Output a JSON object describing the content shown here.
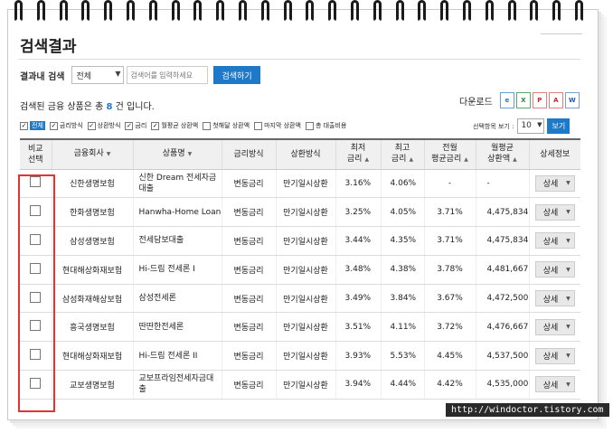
{
  "page": {
    "title": "검색결과"
  },
  "search": {
    "label": "결과내 검색",
    "scope": "전체",
    "placeholder": "검색어를 입력하세요",
    "button": "검색하기"
  },
  "result": {
    "prefix": "검색된 금융 상품은 총 ",
    "count": "8",
    "suffix": " 건 입니다."
  },
  "download": {
    "label": "다운로드",
    "icons": [
      "explorer-icon",
      "excel-icon",
      "pdf-icon",
      "acrobat-icon",
      "word-icon"
    ]
  },
  "filters": [
    {
      "label": "전체",
      "checked": true,
      "active": true
    },
    {
      "label": "금리방식",
      "checked": true
    },
    {
      "label": "상환방식",
      "checked": true
    },
    {
      "label": "금리",
      "checked": true
    },
    {
      "label": "월평균 상환액",
      "checked": true
    },
    {
      "label": "첫해달 상환액",
      "checked": false
    },
    {
      "label": "마지막 상환액",
      "checked": false
    },
    {
      "label": "총 대출비용",
      "checked": false
    }
  ],
  "page_size": {
    "label": "선택항목 보기 :",
    "value": "10",
    "button": "보기"
  },
  "table": {
    "headers": [
      "비교\n선택",
      "금융회사",
      "상품명",
      "금리방식",
      "상환방식",
      "최저\n금리",
      "최고\n금리",
      "전월\n평균금리",
      "월평균\n상환액",
      "상세정보"
    ],
    "detail_label": "상세",
    "rows": [
      [
        "신한생명보험",
        "신한 Dream 전세자금대출",
        "변동금리",
        "만기일시상환",
        "3.16%",
        "4.06%",
        "-",
        "-"
      ],
      [
        "한화생명보험",
        "Hanwha-Home Loan",
        "변동금리",
        "만기일시상환",
        "3.25%",
        "4.05%",
        "3.71%",
        "4,475,834"
      ],
      [
        "삼성생명보험",
        "전세담보대출",
        "변동금리",
        "만기일시상환",
        "3.44%",
        "4.35%",
        "3.71%",
        "4,475,834"
      ],
      [
        "현대해상화재보험",
        "Hi-드림 전세론 I",
        "변동금리",
        "만기일시상환",
        "3.48%",
        "4.38%",
        "3.78%",
        "4,481,667"
      ],
      [
        "삼성화재해상보험",
        "삼성전세론",
        "변동금리",
        "만기일시상환",
        "3.49%",
        "3.84%",
        "3.67%",
        "4,472,500"
      ],
      [
        "흥국생명보험",
        "딴딴한전세론",
        "변동금리",
        "만기일시상환",
        "3.51%",
        "4.11%",
        "3.72%",
        "4,476,667"
      ],
      [
        "현대해상화재보험",
        "Hi-드림 전세론 II",
        "변동금리",
        "만기일시상환",
        "3.93%",
        "5.53%",
        "4.45%",
        "4,537,500"
      ],
      [
        "교보생명보험",
        "교보프라임전세자금대출",
        "변동금리",
        "만기일시상환",
        "3.94%",
        "4.44%",
        "4.42%",
        "4,535,000"
      ]
    ]
  },
  "watermark": "http://windoctor.tistory.com",
  "colors": {
    "accent": "#1e7ac8",
    "highlight_box": "#e53333"
  }
}
